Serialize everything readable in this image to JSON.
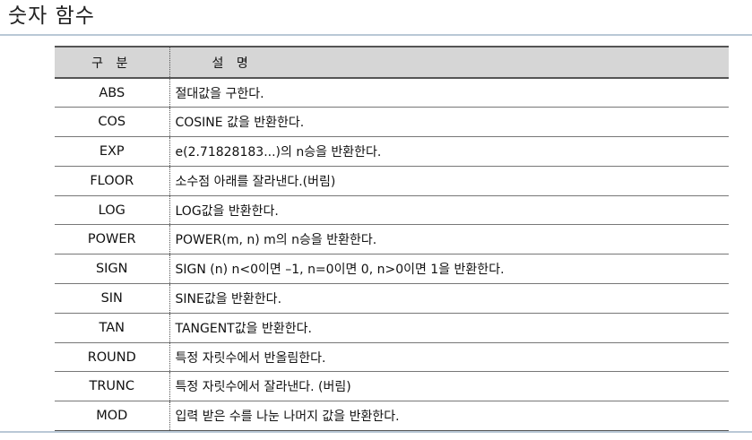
{
  "page_title": "숫자 함수",
  "table": {
    "headers": [
      "구 분",
      "설 명"
    ],
    "rows": [
      {
        "name": "ABS",
        "desc": "절대값을 구한다."
      },
      {
        "name": "COS",
        "desc": "COSINE 값을 반환한다."
      },
      {
        "name": "EXP",
        "desc": "e(2.71828183...)의 n승을 반환한다."
      },
      {
        "name": "FLOOR",
        "desc": "소수점 아래를 잘라낸다.(버림)"
      },
      {
        "name": "LOG",
        "desc": "LOG값을 반환한다."
      },
      {
        "name": "POWER",
        "desc": "POWER(m, n) m의 n승을 반환한다."
      },
      {
        "name": "SIGN",
        "desc": "SIGN (n) n<0이면 –1, n=0이면 0, n>0이면 1을 반환한다."
      },
      {
        "name": "SIN",
        "desc": "SINE값을 반환한다."
      },
      {
        "name": "TAN",
        "desc": "TANGENT값을 반환한다."
      },
      {
        "name": "ROUND",
        "desc": "특정 자릿수에서 반올림한다."
      },
      {
        "name": "TRUNC",
        "desc": "특정 자릿수에서 잘라낸다. (버림)"
      },
      {
        "name": "MOD",
        "desc": "입력 받은 수를 나눈 나머지 값을 반환한다."
      }
    ]
  }
}
